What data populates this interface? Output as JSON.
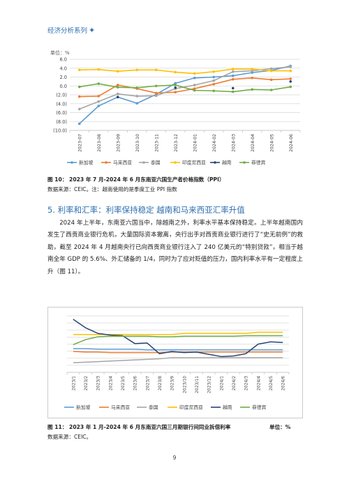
{
  "header": {
    "title": "经济分析系列",
    "star": "✦"
  },
  "chart_data": [
    {
      "type": "line",
      "unit_label": "单位：%",
      "ylim": [
        -10,
        6
      ],
      "y_ticks": [
        "6.0",
        "4.0",
        "2.0",
        "0.0",
        "(2.0)",
        "(4.0)",
        "(6.0)",
        "(8.0)",
        "(10.0)"
      ],
      "y_tick_values": [
        6,
        4,
        2,
        0,
        -2,
        -4,
        -6,
        -8,
        -10
      ],
      "categories": [
        "2023-07",
        "2023-08",
        "2023-09",
        "2023-10",
        "2023-11",
        "2023-12",
        "2024-01",
        "2024-02",
        "2024-03",
        "2024-04",
        "2024-05",
        "2024-06"
      ],
      "series": [
        {
          "name": "新加坡",
          "color": "#5b9bd5",
          "values": [
            -8.5,
            -4.5,
            -2.5,
            -3.9,
            -1.9,
            0.6,
            1.8,
            2.0,
            2.3,
            3.0,
            3.5,
            4.5
          ]
        },
        {
          "name": "马来西亚",
          "color": "#ed7d31",
          "values": [
            -2.4,
            -2.3,
            0.2,
            -0.6,
            -1.6,
            -1.4,
            -0.6,
            0.4,
            1.5,
            1.8,
            1.4,
            1.6
          ]
        },
        {
          "name": "泰国",
          "color": "#a5a5a5",
          "values": [
            -5.2,
            -3.5,
            -1.8,
            -2.3,
            -2.2,
            -0.6,
            0.2,
            1.2,
            3.2,
            3.4,
            3.9,
            4.3
          ]
        },
        {
          "name": "印度尼西亚",
          "color": "#ffc000",
          "values": [
            3.6,
            3.7,
            3.3,
            3.6,
            3.6,
            3.1,
            2.8,
            3.2,
            3.8,
            3.8,
            3.4,
            3.4
          ]
        },
        {
          "name": "越南",
          "color": "#264478",
          "values": [
            null,
            null,
            -2.5,
            null,
            null,
            -0.4,
            null,
            null,
            -0.5,
            null,
            null,
            1.0
          ]
        },
        {
          "name": "菲律宾",
          "color": "#70ad47",
          "values": [
            -0.2,
            0.5,
            -0.3,
            -0.4,
            0.0,
            0.2,
            -1.0,
            -1.1,
            -1.3,
            -0.8,
            -0.9,
            -0.2
          ]
        }
      ]
    },
    {
      "type": "line",
      "ylim": [
        0,
        10
      ],
      "categories": [
        "2023/1",
        "2023/2",
        "2023/3",
        "2023/4",
        "2023/5",
        "2023/6",
        "2023/7",
        "2023/8",
        "2023/9",
        "2023/10",
        "2023/11",
        "2023/12",
        "2024/1",
        "2024/2",
        "2024/3",
        "2024/4",
        "2024/5",
        "2024/6"
      ],
      "series": [
        {
          "name": "新加坡",
          "color": "#5b9bd5",
          "values": [
            4.2,
            4.2,
            4.1,
            4.1,
            4.1,
            4.1,
            4.0,
            4.0,
            4.0,
            4.0,
            4.0,
            4.0,
            4.0,
            4.0,
            4.0,
            4.0,
            4.0,
            4.0
          ]
        },
        {
          "name": "马来西亚",
          "color": "#ed7d31",
          "values": [
            3.7,
            3.6,
            3.6,
            3.5,
            3.5,
            3.5,
            3.5,
            3.5,
            3.6,
            3.6,
            3.6,
            3.6,
            3.6,
            3.6,
            3.6,
            3.6,
            3.6,
            3.6
          ]
        },
        {
          "name": "泰国",
          "color": "#a5a5a5",
          "values": [
            1.7,
            1.8,
            1.9,
            2.0,
            2.1,
            2.2,
            2.3,
            2.4,
            2.6,
            2.6,
            2.6,
            2.6,
            2.6,
            2.6,
            2.6,
            2.6,
            2.6,
            2.6
          ]
        },
        {
          "name": "印度尼西亚",
          "color": "#ffc000",
          "values": [
            6.7,
            6.7,
            6.7,
            6.7,
            6.7,
            6.7,
            6.7,
            6.7,
            6.7,
            6.9,
            6.9,
            6.9,
            6.9,
            6.9,
            6.9,
            7.1,
            7.1,
            7.1
          ]
        },
        {
          "name": "越南",
          "color": "#264478",
          "values": [
            9.4,
            7.9,
            6.9,
            6.6,
            6.5,
            5.1,
            5.2,
            3.3,
            3.7,
            3.5,
            3.6,
            3.2,
            2.8,
            2.9,
            3.3,
            5.0,
            5.4,
            5.3
          ]
        },
        {
          "name": "菲律宾",
          "color": "#70ad47",
          "values": [
            4.9,
            5.8,
            6.3,
            6.4,
            6.4,
            6.4,
            6.4,
            6.3,
            6.3,
            6.4,
            6.4,
            6.4,
            6.4,
            6.4,
            6.5,
            6.5,
            6.5,
            6.5
          ]
        }
      ]
    }
  ],
  "fig10": {
    "caption": "图 10：  2023 年 7 月-2024 年 6 月东南亚六国生产者价格指数（PPI）",
    "source": "数据来源：CEIC。注：越南使用的是季度工业 PPI 指数"
  },
  "section": {
    "title": "5. 利率和汇率：利率保持稳定 越南和马来西亚汇率升值"
  },
  "paragraph": "2024 年上半年，东南亚六国当中，除越南之外，利率水平基本保持稳定。上半年越南国内发生了西贡商业银行危机，大量国际资本撤离，央行出手对西贡商业银行进行了“史无前例”的救助，截至 2024 年 4 月越南央行已向西贡商业银行注入了 240 亿美元的“特别贷款”，相当于越南全年 GDP 的 5.6%、外汇储备的 1/4，同时为了应对贬值的压力，国内利率水平有一定程度上升（图 11）。",
  "fig11": {
    "caption": "图 11：  2023 年 1 月-2024 年 6 月东南亚六国三月期银行间同业拆借利率",
    "unit": "单位：%",
    "source": "数据来源：CEIC。"
  },
  "page_number": "9"
}
